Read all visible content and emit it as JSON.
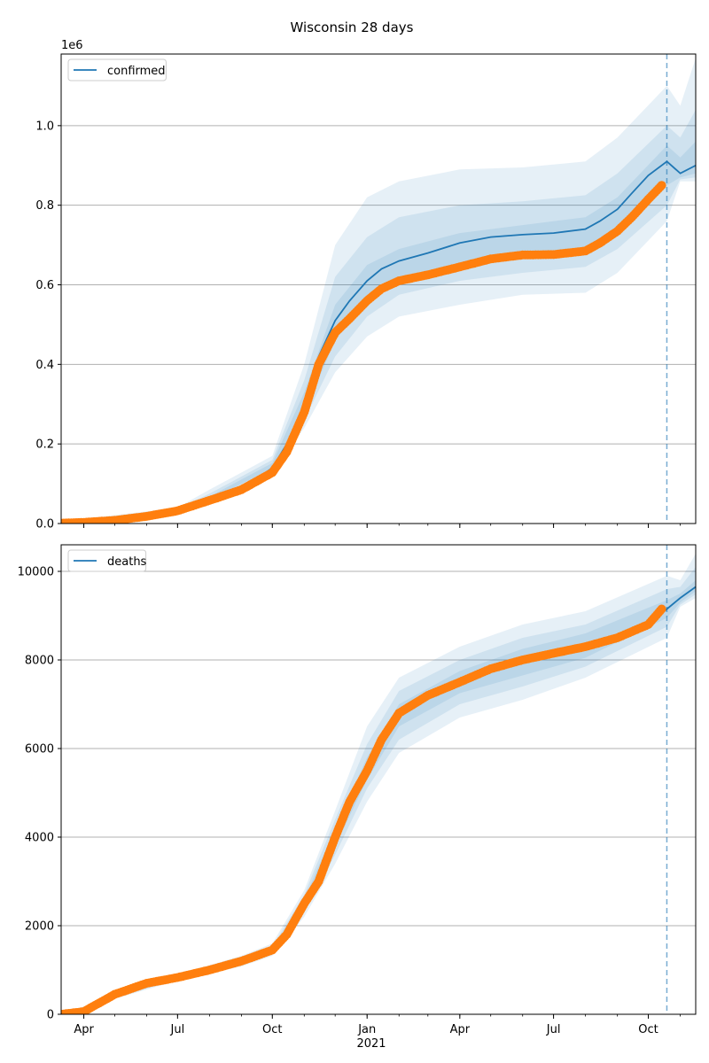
{
  "figure_title": "Wisconsin 28 days",
  "colors": {
    "model_line": "#1f77b4",
    "observed_points": "#ff7f0e",
    "band": "#1f77b4",
    "grid": "#b0b0b0",
    "forecast_divider": "#1f77b4"
  },
  "x_axis": {
    "tick_labels": [
      "Apr",
      "Jul",
      "Oct",
      "Jan",
      "Apr",
      "Jul",
      "Oct"
    ],
    "tick_dates": [
      "2020-04-01",
      "2020-07-01",
      "2020-10-01",
      "2021-01-01",
      "2021-04-01",
      "2021-07-01",
      "2021-10-01"
    ],
    "year_label": "2021",
    "range": [
      "2020-03-10",
      "2021-11-16"
    ]
  },
  "chart_data": [
    {
      "type": "line",
      "title": "Wisconsin 28 days",
      "xlabel": "",
      "ylabel": "",
      "y_offset_label": "1e6",
      "ylim": [
        0,
        1.18
      ],
      "yticks": [
        0.0,
        0.2,
        0.4,
        0.6,
        0.8,
        1.0
      ],
      "ytick_labels": [
        "0.0",
        "0.2",
        "0.4",
        "0.6",
        "0.8",
        "1.0"
      ],
      "grid": "horizontal",
      "legend": {
        "placement": "top-left",
        "entries": [
          "confirmed"
        ]
      },
      "forecast_start": "2021-10-19",
      "series": [
        {
          "name": "confirmed",
          "kind": "model",
          "x": [
            "2020-03-10",
            "2020-04-01",
            "2020-05-01",
            "2020-06-01",
            "2020-07-01",
            "2020-08-01",
            "2020-09-01",
            "2020-10-01",
            "2020-10-15",
            "2020-11-01",
            "2020-11-15",
            "2020-12-01",
            "2020-12-15",
            "2021-01-01",
            "2021-01-15",
            "2021-02-01",
            "2021-03-01",
            "2021-04-01",
            "2021-05-01",
            "2021-06-01",
            "2021-07-01",
            "2021-08-01",
            "2021-08-15",
            "2021-09-01",
            "2021-09-15",
            "2021-10-01",
            "2021-10-19",
            "2021-11-01",
            "2021-11-16"
          ],
          "values": [
            0.001,
            0.003,
            0.008,
            0.018,
            0.032,
            0.058,
            0.085,
            0.14,
            0.2,
            0.3,
            0.42,
            0.51,
            0.56,
            0.61,
            0.64,
            0.66,
            0.68,
            0.705,
            0.72,
            0.726,
            0.73,
            0.74,
            0.76,
            0.79,
            0.83,
            0.875,
            0.91,
            0.88,
            0.9
          ]
        },
        {
          "name": "observed confirmed",
          "kind": "observed",
          "x": [
            "2020-03-10",
            "2020-04-01",
            "2020-05-01",
            "2020-06-01",
            "2020-07-01",
            "2020-08-01",
            "2020-09-01",
            "2020-10-01",
            "2020-10-15",
            "2020-11-01",
            "2020-11-15",
            "2020-12-01",
            "2020-12-15",
            "2021-01-01",
            "2021-01-15",
            "2021-02-01",
            "2021-03-01",
            "2021-04-01",
            "2021-05-01",
            "2021-06-01",
            "2021-07-01",
            "2021-08-01",
            "2021-08-15",
            "2021-09-01",
            "2021-09-15",
            "2021-10-01",
            "2021-10-14"
          ],
          "values": [
            0.001,
            0.003,
            0.008,
            0.018,
            0.032,
            0.058,
            0.085,
            0.128,
            0.18,
            0.28,
            0.4,
            0.48,
            0.515,
            0.56,
            0.59,
            0.61,
            0.625,
            0.645,
            0.665,
            0.675,
            0.676,
            0.685,
            0.705,
            0.735,
            0.77,
            0.815,
            0.85
          ]
        }
      ],
      "bands": [
        {
          "x": [
            "2020-03-10",
            "2020-07-01",
            "2020-08-01",
            "2020-10-01",
            "2020-11-01",
            "2020-12-01",
            "2021-01-01",
            "2021-02-01",
            "2021-04-01",
            "2021-06-01",
            "2021-08-01",
            "2021-09-01",
            "2021-10-19",
            "2021-11-01",
            "2021-11-16"
          ],
          "low": [
            0.0,
            0.03,
            0.055,
            0.13,
            0.24,
            0.38,
            0.47,
            0.52,
            0.55,
            0.575,
            0.58,
            0.63,
            0.76,
            0.86,
            0.86
          ],
          "high": [
            0.005,
            0.04,
            0.085,
            0.17,
            0.4,
            0.7,
            0.82,
            0.86,
            0.89,
            0.895,
            0.91,
            0.97,
            1.1,
            1.05,
            1.17
          ]
        },
        {
          "x": [
            "2020-03-10",
            "2020-07-01",
            "2020-08-01",
            "2020-10-01",
            "2020-11-01",
            "2020-12-01",
            "2021-01-01",
            "2021-02-01",
            "2021-04-01",
            "2021-06-01",
            "2021-08-01",
            "2021-09-01",
            "2021-10-19",
            "2021-11-01",
            "2021-11-16"
          ],
          "low": [
            0.0,
            0.032,
            0.058,
            0.135,
            0.26,
            0.42,
            0.52,
            0.575,
            0.61,
            0.63,
            0.645,
            0.69,
            0.8,
            0.865,
            0.87
          ],
          "high": [
            0.003,
            0.037,
            0.075,
            0.16,
            0.36,
            0.62,
            0.72,
            0.77,
            0.8,
            0.81,
            0.825,
            0.88,
            1.0,
            0.97,
            1.04
          ]
        },
        {
          "x": [
            "2020-03-10",
            "2020-07-01",
            "2020-08-01",
            "2020-10-01",
            "2020-11-01",
            "2020-12-01",
            "2021-01-01",
            "2021-02-01",
            "2021-04-01",
            "2021-06-01",
            "2021-08-01",
            "2021-09-01",
            "2021-10-19",
            "2021-11-01",
            "2021-11-16"
          ],
          "low": [
            0.0,
            0.033,
            0.06,
            0.138,
            0.28,
            0.46,
            0.56,
            0.615,
            0.65,
            0.67,
            0.69,
            0.74,
            0.85,
            0.87,
            0.88
          ],
          "high": [
            0.002,
            0.035,
            0.068,
            0.152,
            0.33,
            0.55,
            0.65,
            0.69,
            0.73,
            0.75,
            0.77,
            0.82,
            0.95,
            0.92,
            0.96
          ]
        }
      ]
    },
    {
      "type": "line",
      "xlabel": "",
      "ylabel": "",
      "ylim": [
        0,
        10600
      ],
      "yticks": [
        0,
        2000,
        4000,
        6000,
        8000,
        10000
      ],
      "ytick_labels": [
        "0",
        "2000",
        "4000",
        "6000",
        "8000",
        "10000"
      ],
      "grid": "horizontal",
      "legend": {
        "placement": "top-left",
        "entries": [
          "deaths"
        ]
      },
      "forecast_start": "2021-10-19",
      "series": [
        {
          "name": "deaths",
          "kind": "model",
          "x": [
            "2020-03-10",
            "2020-04-01",
            "2020-05-01",
            "2020-06-01",
            "2020-07-01",
            "2020-08-01",
            "2020-09-01",
            "2020-10-01",
            "2020-10-15",
            "2020-11-01",
            "2020-11-15",
            "2020-12-01",
            "2020-12-15",
            "2021-01-01",
            "2021-01-15",
            "2021-02-01",
            "2021-03-01",
            "2021-04-01",
            "2021-05-01",
            "2021-06-01",
            "2021-07-01",
            "2021-08-01",
            "2021-09-01",
            "2021-10-01",
            "2021-10-19",
            "2021-11-01",
            "2021-11-16"
          ],
          "values": [
            0,
            60,
            450,
            700,
            830,
            1000,
            1200,
            1450,
            1800,
            2500,
            3000,
            4000,
            4800,
            5500,
            6200,
            6800,
            7200,
            7500,
            7800,
            8000,
            8150,
            8300,
            8500,
            8800,
            9150,
            9400,
            9650
          ]
        },
        {
          "name": "observed deaths",
          "kind": "observed",
          "x": [
            "2020-03-10",
            "2020-04-01",
            "2020-05-01",
            "2020-06-01",
            "2020-07-01",
            "2020-08-01",
            "2020-09-01",
            "2020-10-01",
            "2020-10-15",
            "2020-11-01",
            "2020-11-15",
            "2020-12-01",
            "2020-12-15",
            "2021-01-01",
            "2021-01-15",
            "2021-02-01",
            "2021-03-01",
            "2021-04-01",
            "2021-05-01",
            "2021-06-01",
            "2021-07-01",
            "2021-08-01",
            "2021-09-01",
            "2021-10-01",
            "2021-10-14"
          ],
          "values": [
            0,
            60,
            450,
            700,
            830,
            1000,
            1200,
            1450,
            1800,
            2500,
            3000,
            4000,
            4800,
            5500,
            6200,
            6800,
            7200,
            7500,
            7800,
            8000,
            8150,
            8300,
            8500,
            8800,
            9150
          ]
        }
      ],
      "bands": [
        {
          "x": [
            "2020-03-10",
            "2020-07-01",
            "2020-09-01",
            "2020-10-01",
            "2020-11-01",
            "2020-12-01",
            "2021-01-01",
            "2021-02-01",
            "2021-04-01",
            "2021-06-01",
            "2021-08-01",
            "2021-10-19",
            "2021-11-01",
            "2021-11-16"
          ],
          "low": [
            0,
            760,
            1080,
            1320,
            2200,
            3400,
            4800,
            5900,
            6700,
            7100,
            7600,
            8500,
            9200,
            9400
          ],
          "high": [
            0,
            900,
            1320,
            1600,
            2800,
            4600,
            6500,
            7600,
            8300,
            8800,
            9100,
            9900,
            9800,
            10400
          ]
        },
        {
          "x": [
            "2020-03-10",
            "2020-07-01",
            "2020-09-01",
            "2020-10-01",
            "2020-11-01",
            "2020-12-01",
            "2021-01-01",
            "2021-02-01",
            "2021-04-01",
            "2021-06-01",
            "2021-08-01",
            "2021-10-19",
            "2021-11-01",
            "2021-11-16"
          ],
          "low": [
            0,
            790,
            1130,
            1370,
            2300,
            3600,
            5100,
            6200,
            7000,
            7400,
            7850,
            8750,
            9250,
            9480
          ],
          "high": [
            0,
            870,
            1270,
            1530,
            2700,
            4400,
            6100,
            7300,
            8000,
            8500,
            8800,
            9600,
            9650,
            10100
          ]
        },
        {
          "x": [
            "2020-03-10",
            "2020-07-01",
            "2020-09-01",
            "2020-10-01",
            "2020-11-01",
            "2020-12-01",
            "2021-01-01",
            "2021-02-01",
            "2021-04-01",
            "2021-06-01",
            "2021-08-01",
            "2021-10-19",
            "2021-11-01",
            "2021-11-16"
          ],
          "low": [
            0,
            810,
            1160,
            1410,
            2400,
            3800,
            5300,
            6500,
            7250,
            7650,
            8050,
            8950,
            9300,
            9550
          ],
          "high": [
            0,
            850,
            1230,
            1490,
            2600,
            4200,
            5800,
            7000,
            7750,
            8250,
            8600,
            9350,
            9500,
            9800
          ]
        }
      ]
    }
  ]
}
